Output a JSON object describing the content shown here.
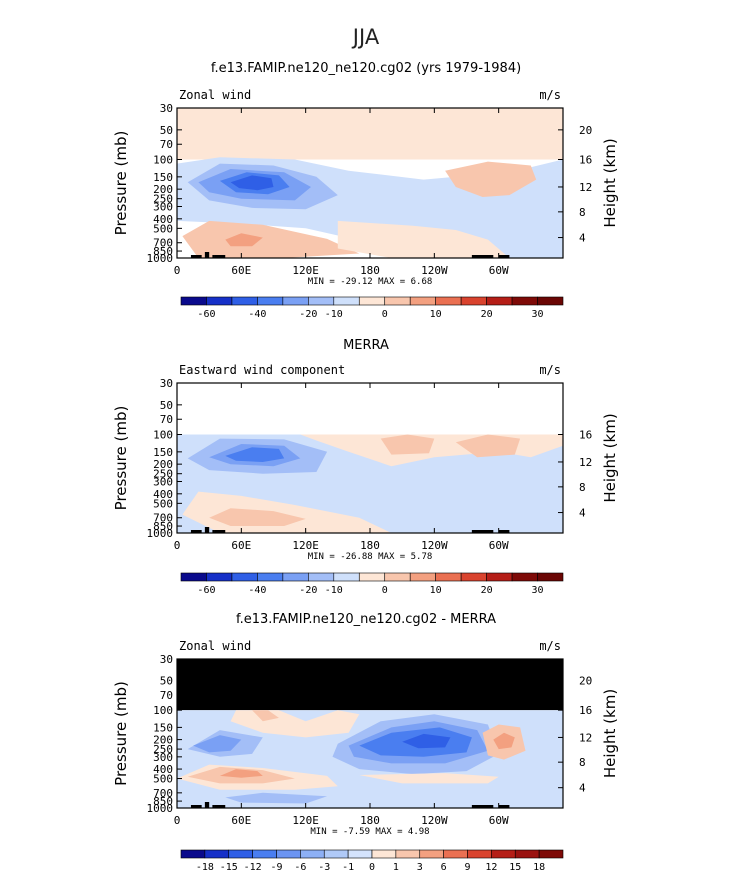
{
  "figure": {
    "title": "JJA"
  },
  "colors": {
    "blue_levels": [
      "#0a0a8c",
      "#1630c8",
      "#2f5fe6",
      "#4a7ef0",
      "#7aa0f4",
      "#a3bef7",
      "#cfe0fb"
    ],
    "warm_levels": [
      "#fde6d6",
      "#f8c6ad",
      "#f3a080",
      "#ea7052",
      "#d9432e",
      "#b51e17",
      "#7e0a07"
    ],
    "missing": "#000000",
    "topography": "#000000"
  },
  "chart_data": [
    {
      "type": "heatmap",
      "id": "model",
      "title": "f.e13.FAMIP.ne120_ne120.cg02 (yrs 1979-1984)",
      "field_label": "Zonal wind",
      "units": "m/s",
      "ylabel": "Pressure (mb)",
      "ylabel_right": "Height (km)",
      "x_ticks": [
        "0",
        "60E",
        "120E",
        "180",
        "120W",
        "60W"
      ],
      "y_ticks": [
        "30",
        "50",
        "70",
        "100",
        "150",
        "200",
        "250",
        "300",
        "400",
        "500",
        "700",
        "850",
        "1000"
      ],
      "height_ticks": [
        "20",
        "16",
        "12",
        "8",
        "4"
      ],
      "stats": {
        "min_label": "MIN =",
        "min": "-29.12",
        "max_label": "MAX =",
        "max": "6.68"
      },
      "colorbar_labels": [
        "-60",
        "-40",
        "-20",
        "-10",
        "0",
        "10",
        "20",
        "30"
      ],
      "ylim": [
        1000,
        30
      ],
      "data_top": 30
    },
    {
      "type": "heatmap",
      "id": "merra",
      "title": "MERRA",
      "field_label": "Eastward wind component",
      "units": "m/s",
      "ylabel": "Pressure (mb)",
      "ylabel_right": "Height (km)",
      "x_ticks": [
        "0",
        "60E",
        "120E",
        "180",
        "120W",
        "60W"
      ],
      "y_ticks": [
        "30",
        "50",
        "70",
        "100",
        "150",
        "200",
        "250",
        "300",
        "400",
        "500",
        "700",
        "850",
        "1000"
      ],
      "height_ticks": [
        "16",
        "12",
        "8",
        "4"
      ],
      "stats": {
        "min_label": "MIN =",
        "min": "-26.88",
        "max_label": "MAX =",
        "max": "5.78"
      },
      "colorbar_labels": [
        "-60",
        "-40",
        "-20",
        "-10",
        "0",
        "10",
        "20",
        "30"
      ],
      "ylim": [
        1000,
        30
      ],
      "data_top": 100
    },
    {
      "type": "heatmap",
      "id": "diff",
      "title": "f.e13.FAMIP.ne120_ne120.cg02 - MERRA",
      "field_label": "Zonal wind",
      "units": "m/s",
      "ylabel": "Pressure (mb)",
      "ylabel_right": "Height (km)",
      "x_ticks": [
        "0",
        "60E",
        "120E",
        "180",
        "120W",
        "60W"
      ],
      "y_ticks": [
        "30",
        "50",
        "70",
        "100",
        "150",
        "200",
        "250",
        "300",
        "400",
        "500",
        "700",
        "850",
        "1000"
      ],
      "height_ticks": [
        "20",
        "16",
        "12",
        "8",
        "4"
      ],
      "stats": {
        "min_label": "MIN =",
        "min": "-7.59",
        "max_label": "MAX =",
        "max": "4.98"
      },
      "colorbar_labels": [
        "-18",
        "-15",
        "-12",
        "-9",
        "-6",
        "-3",
        "-1",
        "0",
        "1",
        "3",
        "6",
        "9",
        "12",
        "15",
        "18"
      ],
      "ylim": [
        1000,
        30
      ],
      "data_top": 100
    }
  ]
}
